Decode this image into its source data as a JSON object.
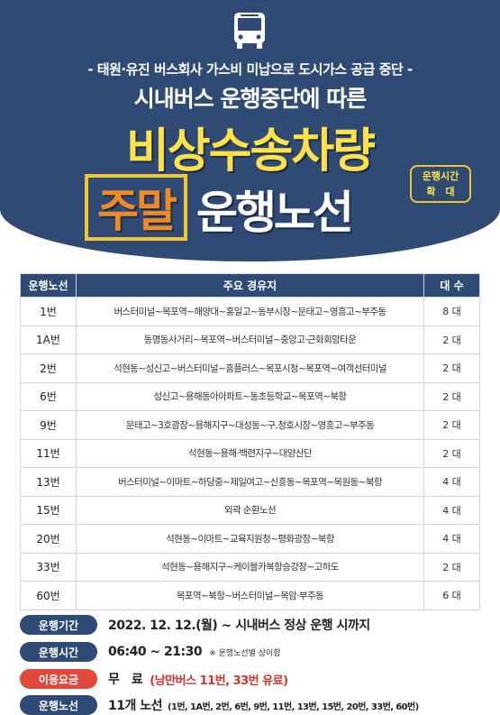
{
  "header": {
    "bus_icon": "bus-icon",
    "subtitle1": "- 태원·유진 버스회사 가스비 미납으로 도시가스 공급 중단 -",
    "subtitle2": "시내버스 운행중단에 따른",
    "title1": "비상수송차량",
    "title2_highlight": "주말",
    "title2_rest": "운행노선",
    "badge_line1": "운행시간",
    "badge_line2": "확　대"
  },
  "table": {
    "headers": {
      "route": "운행노선",
      "stops": "주요 경유지",
      "count": "대 수"
    },
    "rows": [
      {
        "route": "1번",
        "stops": "버스터미널~목포역~해양대~홍일고~동부시장~문태고~영흥고~부주동",
        "count": "8 대"
      },
      {
        "route": "1A번",
        "stops": "동명동사거리~목포역~버스터미널~중앙고·근화회망타운",
        "count": "2 대"
      },
      {
        "route": "2번",
        "stops": "석현동~성신고~버스터미널~홈플러스~목포시청~목포역~여객선터미널",
        "count": "2 대"
      },
      {
        "route": "6번",
        "stops": "성신고~용해동아아파트~동초등학교~목포역~북항",
        "count": "2 대"
      },
      {
        "route": "9번",
        "stops": "문태고~3호광장~용해지구~대성동~구.청호시장~영흥고~부주동",
        "count": "2 대"
      },
      {
        "route": "11번",
        "stops": "석현동~용해·백련지구~대양산단",
        "count": "2 대"
      },
      {
        "route": "13번",
        "stops": "버스터미널~이마트~하당중~제일여고~신흥동~목포역~목원동~북항",
        "count": "4 대"
      },
      {
        "route": "15번",
        "stops": "외곽 순환노선",
        "count": "4 대"
      },
      {
        "route": "20번",
        "stops": "석현동~이마트~교육지원청~평화광장~북항",
        "count": "4 대"
      },
      {
        "route": "33번",
        "stops": "석현동~용해지구~케이블카북항승강장~고하도",
        "count": "2 대"
      },
      {
        "route": "60번",
        "stops": "목포역~북항~버스터미널~목암·부주동",
        "count": "6 대"
      }
    ]
  },
  "info": {
    "period_label": "운행기간",
    "period_value": "2022. 12. 12.(월) ~ 시내버스 정상 운행 시까지",
    "hours_label": "운행시간",
    "hours_value": "06:40 ~ 21:30",
    "hours_note": "※ 운행노선별 상이함",
    "fare_label": "이용요금",
    "fare_value": "무　료",
    "fare_note": "(낭만버스 11번, 33번 유료)",
    "routes_label": "운행노선",
    "routes_value": "11개 노선",
    "routes_detail": "(1번, 1A번, 2번, 6번, 9번, 11번, 13번, 15번, 20번, 33번, 60번)"
  },
  "colors": {
    "navy": "#2f4a74",
    "yellow": "#ffe14a",
    "orange": "#f08a24",
    "red": "#e04a3c"
  }
}
